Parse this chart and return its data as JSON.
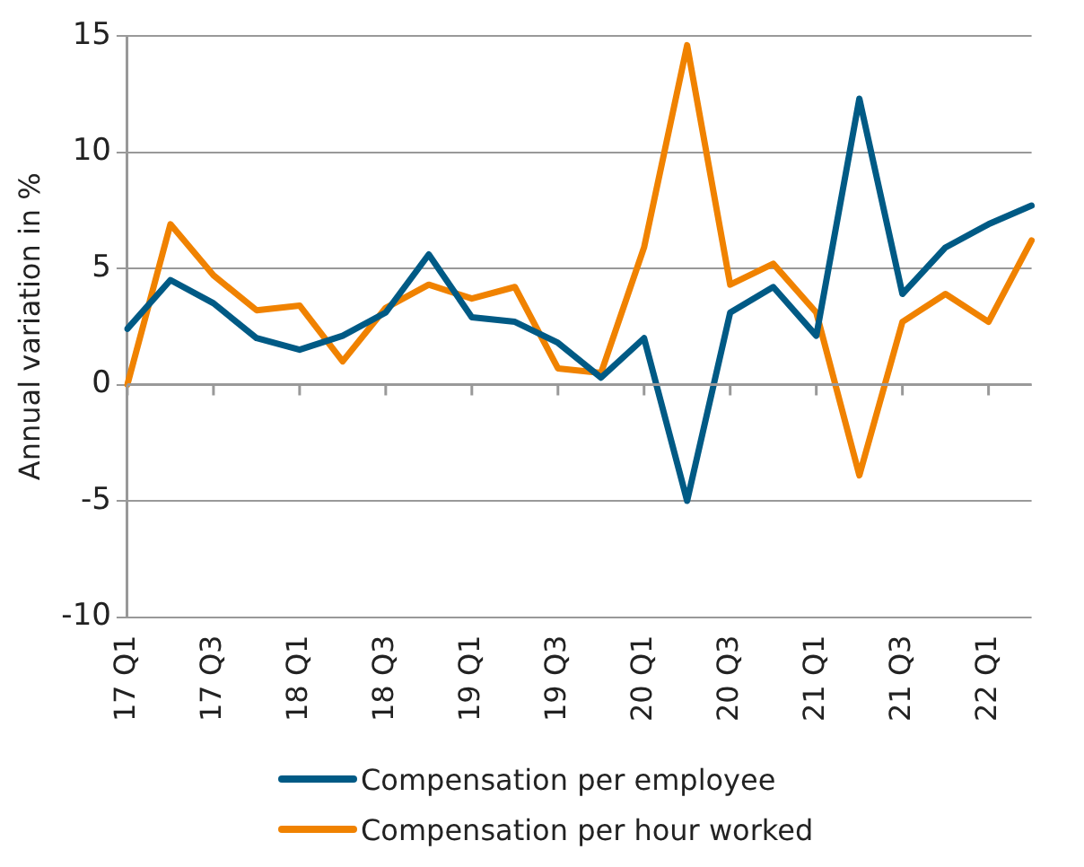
{
  "chart_data": {
    "type": "line",
    "ylabel": "Annual variation in %",
    "categories": [
      "17 Q1",
      null,
      "17 Q3",
      null,
      "18 Q1",
      null,
      "18 Q3",
      null,
      "19 Q1",
      null,
      "19 Q3",
      null,
      "20 Q1",
      null,
      "20 Q3",
      null,
      "21 Q1",
      null,
      "21 Q3",
      null,
      "22 Q1",
      null
    ],
    "series": [
      {
        "name": "Compensation per employee",
        "color": "#005a85",
        "values": [
          2.4,
          4.5,
          3.5,
          2.0,
          1.5,
          2.1,
          3.1,
          5.6,
          2.9,
          2.7,
          1.8,
          0.3,
          2.0,
          -5.0,
          3.1,
          4.2,
          2.1,
          12.3,
          3.9,
          5.9,
          6.9,
          7.7
        ]
      },
      {
        "name": "Compensation per hour worked",
        "color": "#f08200",
        "values": [
          0,
          6.9,
          4.7,
          3.2,
          3.4,
          1.0,
          3.3,
          4.3,
          3.7,
          4.2,
          0.7,
          0.5,
          5.9,
          14.6,
          4.3,
          5.2,
          3.1,
          -3.9,
          2.7,
          3.9,
          2.7,
          6.2
        ]
      }
    ],
    "ylim": [
      -10,
      15
    ],
    "yticks": [
      -10,
      -5,
      0,
      5,
      10,
      15
    ],
    "grid": "y",
    "legend": "bottom",
    "marker": "none",
    "line_style": "solid"
  }
}
